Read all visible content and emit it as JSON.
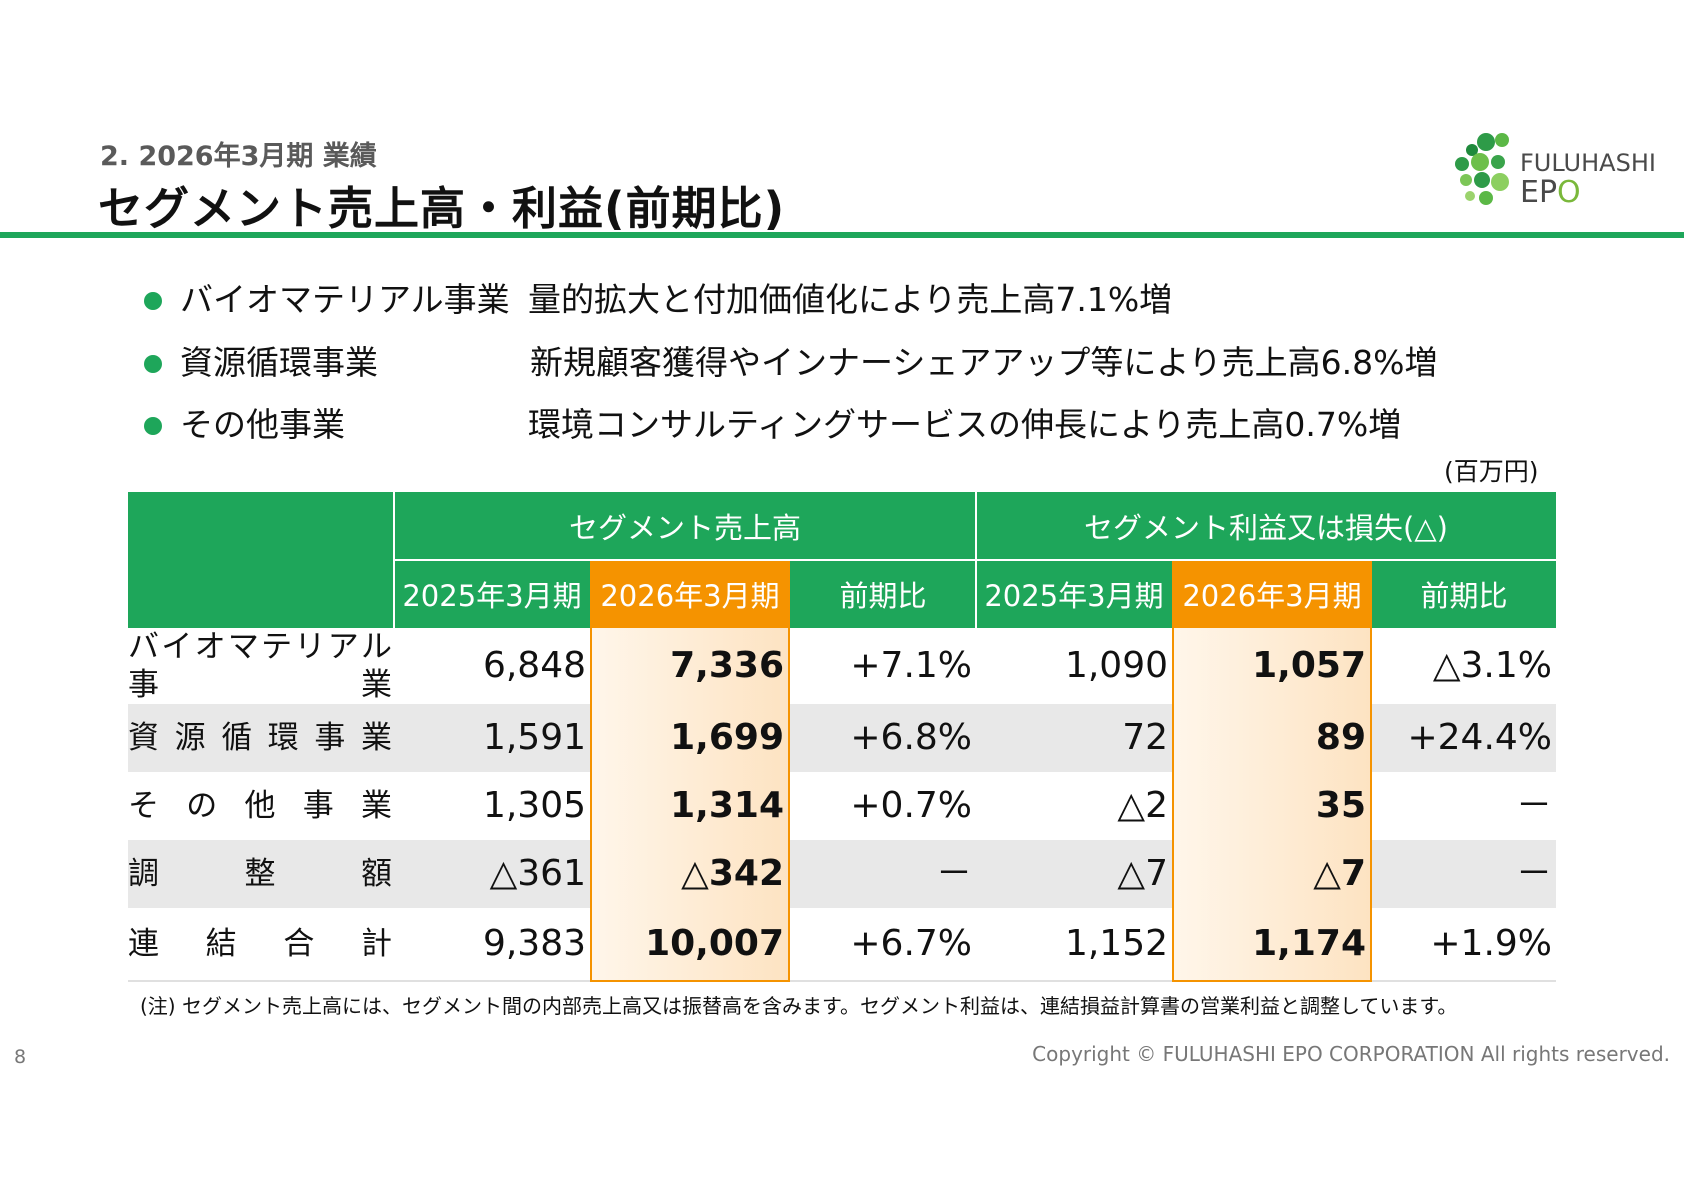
{
  "header": {
    "subtitle": "2. 2026年3月期 業績",
    "title": "セグメント売上高・利益(前期比)"
  },
  "logo": {
    "line1": "FULUHASHI",
    "line2a": "EP",
    "line2b": "O",
    "icon": "green-dots-logo-icon",
    "brand_color": "#1ea65a"
  },
  "bullets": [
    {
      "label": "バイオマテリアル事業",
      "desc": "量的拡大と付加価値化により売上高7.1%増"
    },
    {
      "label": "資源循環事業",
      "desc": "新規顧客獲得やインナーシェアアップ等により売上高6.8%増"
    },
    {
      "label": "その他事業",
      "desc": "環境コンサルティングサービスの伸長により売上高0.7%増"
    }
  ],
  "unit": "(百万円)",
  "table": {
    "group1": "セグメント売上高",
    "group2": "セグメント利益又は損失(△)",
    "cols": [
      "2025年3月期",
      "2026年3月期",
      "前期比",
      "2025年3月期",
      "2026年3月期",
      "前期比"
    ],
    "rows": [
      {
        "label_chars": [
          "バ",
          "イ",
          "オ",
          "マ",
          "テ",
          "リ",
          "ア",
          "ル"
        ],
        "label_line2": [
          "事",
          "業"
        ],
        "values": [
          "6,848",
          "7,336",
          "+7.1%",
          "1,090",
          "1,057",
          "△3.1%"
        ]
      },
      {
        "label_chars": [
          "資",
          "源",
          "循",
          "環",
          "事",
          "業"
        ],
        "values": [
          "1,591",
          "1,699",
          "+6.8%",
          "72",
          "89",
          "+24.4%"
        ]
      },
      {
        "label_chars": [
          "そ",
          "の",
          "他",
          "事",
          "業"
        ],
        "values": [
          "1,305",
          "1,314",
          "+0.7%",
          "△2",
          "35",
          "－"
        ]
      },
      {
        "label_chars": [
          "調",
          "整",
          "額"
        ],
        "values": [
          "△361",
          "△342",
          "－",
          "△7",
          "△7",
          "－"
        ]
      },
      {
        "label_chars": [
          "連",
          "結",
          "合",
          "計"
        ],
        "values": [
          "9,383",
          "10,007",
          "+6.7%",
          "1,152",
          "1,174",
          "+1.9%"
        ]
      }
    ]
  },
  "note": "(注) セグメント売上高には、セグメント間の内部売上高又は振替高を含みます。セグメント利益は、連結損益計算書の営業利益と調整しています。",
  "page_number": "8",
  "copyright": "Copyright © FULUHASHI EPO CORPORATION All rights reserved.",
  "colors": {
    "green": "#1ea65a",
    "orange": "#f59300",
    "row_gray": "#e8e8e8"
  }
}
